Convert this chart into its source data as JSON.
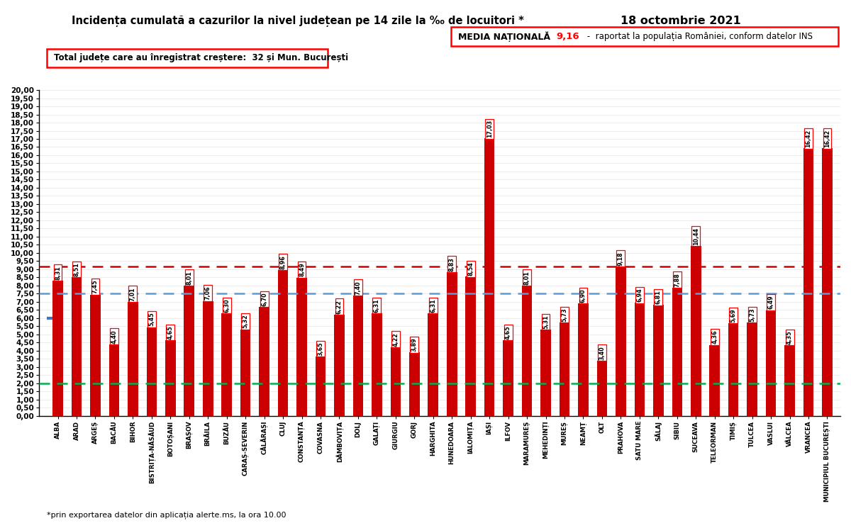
{
  "title": "Incidența cumulată a cazurilor la nivel județean pe 14 zile la ‰ de locuitori *",
  "date": "18 octombrie 2021",
  "subtitle_box": "Total județe care au înregistrat creștere:  32 și Mun. București",
  "media_label": "MEDIA NAȚIONALĂ",
  "media_value": "9,16",
  "media_suffix": " -  raportat la populația României, conform datelor INS",
  "footnote": "*prin exportarea datelor din aplicația alerte.ms, la ora 10.00",
  "categories": [
    "ALBA",
    "ARAD",
    "ARGEȘ",
    "BACĂU",
    "BIHOR",
    "BISTRIȚA-NĂSĂUD",
    "BOTOȘANI",
    "BRAȘOV",
    "BRĂILA",
    "BUZĂU",
    "CARAȘ-SEVERIN",
    "CĂLĂRAȘI",
    "CLUJ",
    "CONSTANȚA",
    "COVASNA",
    "DÂMBOVIȚA",
    "DOLJ",
    "GALAȚI",
    "GIURGIU",
    "GORJ",
    "HARGHITA",
    "HUNEDOARA",
    "IALOMIȚA",
    "IAȘI",
    "ILFOV",
    "MARAMUREȘ",
    "MEHEDINȚI",
    "MUREȘ",
    "NEAMȚ",
    "OLT",
    "PRAHOVA",
    "SATU MARE",
    "SĂLAJ",
    "SIBIU",
    "SUCEAVA",
    "TELEORMAN",
    "TIMIȘ",
    "TULCEA",
    "VASLUI",
    "VÂLCEA",
    "VRANCEA",
    "MUNICIPIUL BUCUREȘTI"
  ],
  "values": [
    8.31,
    8.51,
    7.45,
    4.4,
    7.01,
    5.45,
    4.65,
    8.01,
    7.06,
    6.3,
    5.32,
    6.7,
    8.96,
    8.49,
    3.65,
    6.22,
    7.4,
    6.31,
    4.22,
    3.89,
    6.31,
    8.83,
    8.54,
    17.03,
    4.65,
    8.01,
    5.31,
    5.73,
    6.9,
    3.4,
    9.18,
    6.94,
    6.81,
    7.88,
    10.44,
    4.36,
    5.69,
    5.73,
    6.49,
    4.35,
    16.42,
    16.42
  ],
  "bar_color": "#CC0000",
  "arrow_color": "#CC0000",
  "line_national_color": "#CC0000",
  "line_national_value": 9.16,
  "line_blue_value": 7.5,
  "line_blue_color": "#5B9BD5",
  "line_green_value": 2.0,
  "line_green_color": "#00B050",
  "line_blue2_value": 6.0,
  "line_blue2_color": "#4472C4",
  "ylim_max": 20.0,
  "ytick_step": 0.5,
  "background_color": "#FFFFFF"
}
